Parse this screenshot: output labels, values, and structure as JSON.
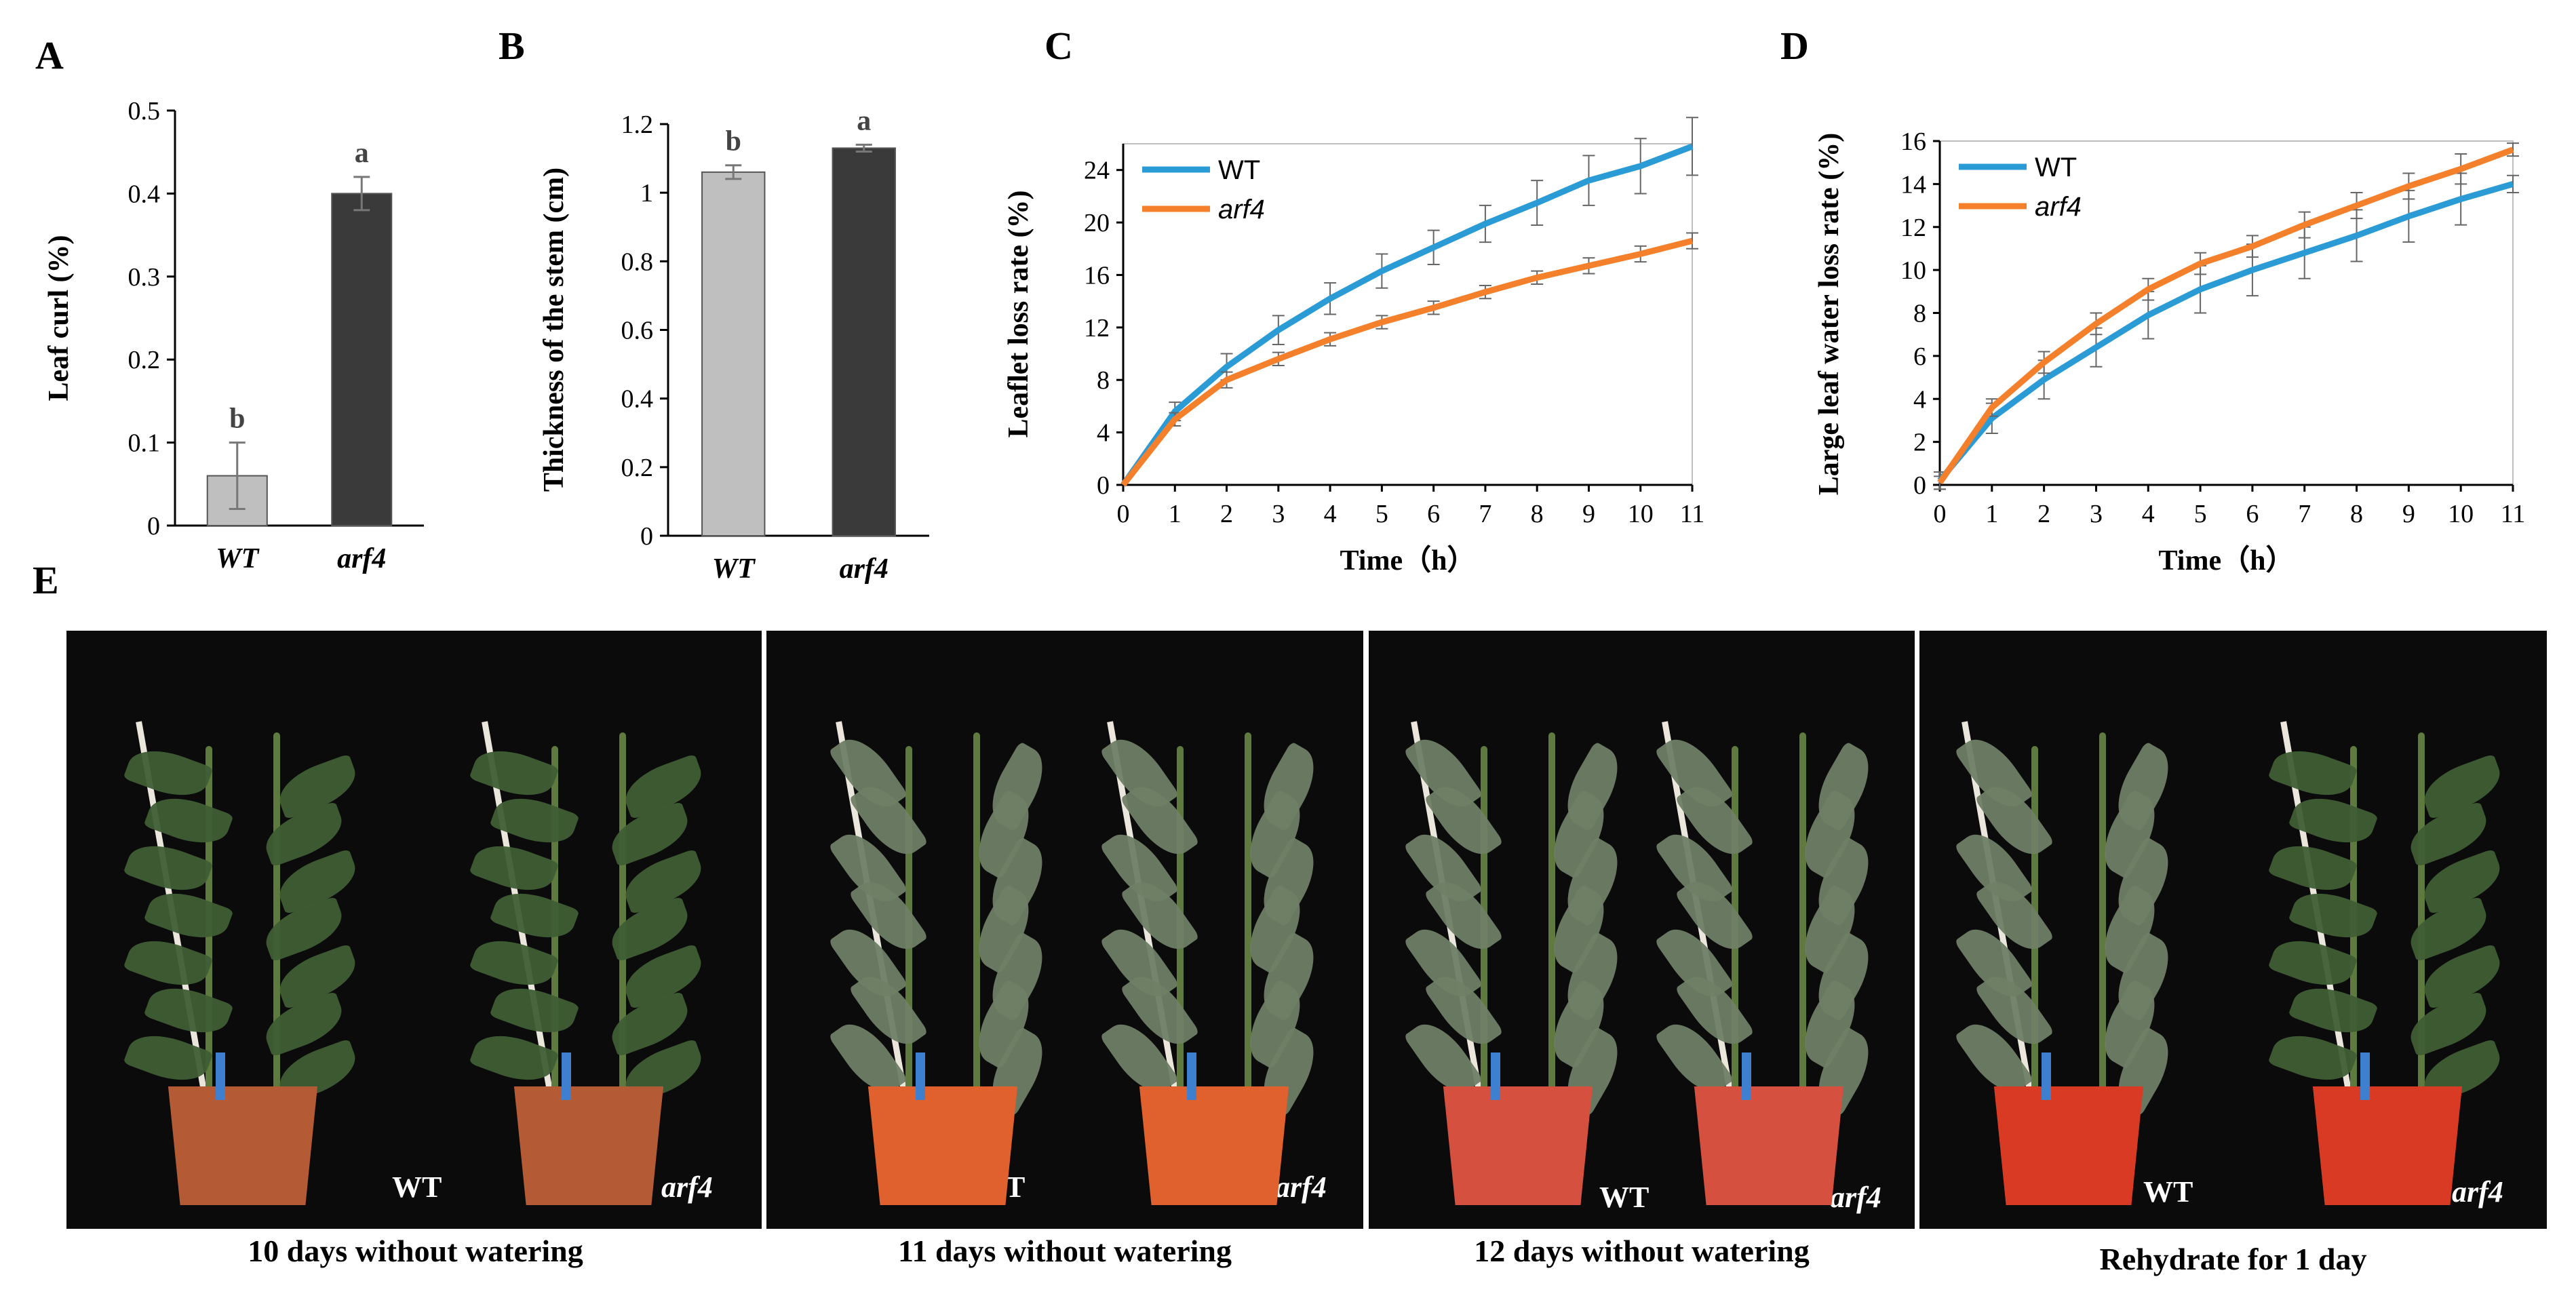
{
  "panels": {
    "A": "A",
    "B": "B",
    "C": "C",
    "D": "D",
    "E": "E"
  },
  "colors": {
    "wt_bar": "#bfbfbf",
    "arf4_bar": "#3a3a3a",
    "wt_line": "#2b9bd6",
    "arf4_line": "#f5802c"
  },
  "chart_data": [
    {
      "id": "A",
      "type": "bar",
      "ylabel": "Leaf curl (%)",
      "categories": [
        "WT",
        "arf4"
      ],
      "values": [
        0.06,
        0.4
      ],
      "errors": [
        0.04,
        0.02
      ],
      "sig": [
        "b",
        "a"
      ],
      "ylim": [
        0,
        0.5
      ],
      "yticks": [
        "0",
        "0.1",
        "0.2",
        "0.3",
        "0.4",
        "0.5"
      ]
    },
    {
      "id": "B",
      "type": "bar",
      "ylabel": "Thickness of the stem (cm)",
      "categories": [
        "WT",
        "arf4"
      ],
      "values": [
        1.06,
        1.13
      ],
      "errors": [
        0.02,
        0.01
      ],
      "sig": [
        "b",
        "a"
      ],
      "ylim": [
        0,
        1.2
      ],
      "yticks": [
        "0",
        "0.2",
        "0.4",
        "0.6",
        "0.8",
        "1",
        "1.2"
      ]
    },
    {
      "id": "C",
      "type": "line",
      "xlabel": "Time（h）",
      "ylabel": "Leaflet loss rate (%)",
      "x": [
        0,
        1,
        2,
        3,
        4,
        5,
        6,
        7,
        8,
        9,
        10,
        11
      ],
      "xticks": [
        "0",
        "1",
        "2",
        "3",
        "4",
        "5",
        "6",
        "7",
        "8",
        "9",
        "10",
        "11"
      ],
      "ylim": [
        0,
        26
      ],
      "yticks": [
        "0",
        "4",
        "8",
        "12",
        "16",
        "20",
        "24"
      ],
      "series": [
        {
          "name": "WT",
          "values": [
            0,
            5.6,
            9.0,
            11.8,
            14.2,
            16.3,
            18.1,
            19.9,
            21.5,
            23.2,
            24.3,
            25.8
          ],
          "errors": [
            0,
            0.7,
            1.0,
            1.1,
            1.2,
            1.3,
            1.3,
            1.4,
            1.7,
            1.9,
            2.1,
            2.2
          ]
        },
        {
          "name": "arf4",
          "values": [
            0,
            5.0,
            8.0,
            9.6,
            11.1,
            12.4,
            13.5,
            14.7,
            15.8,
            16.7,
            17.6,
            18.6
          ],
          "errors": [
            0,
            0.5,
            0.6,
            0.5,
            0.5,
            0.5,
            0.5,
            0.5,
            0.5,
            0.6,
            0.6,
            0.6
          ]
        }
      ]
    },
    {
      "id": "D",
      "type": "line",
      "xlabel": "Time（h）",
      "ylabel": "Large leaf water loss rate (%)",
      "x": [
        0,
        1,
        2,
        3,
        4,
        5,
        6,
        7,
        8,
        9,
        10,
        11
      ],
      "xticks": [
        "0",
        "1",
        "2",
        "3",
        "4",
        "5",
        "6",
        "7",
        "8",
        "9",
        "10",
        "11"
      ],
      "ylim": [
        0,
        16
      ],
      "yticks": [
        "0",
        "2",
        "4",
        "6",
        "8",
        "10",
        "12",
        "14",
        "16"
      ],
      "series": [
        {
          "name": "WT",
          "values": [
            0.2,
            3.1,
            4.9,
            6.4,
            7.9,
            9.1,
            10.0,
            10.8,
            11.6,
            12.5,
            13.3,
            14.0
          ],
          "errors": [
            0.4,
            0.7,
            0.9,
            0.9,
            1.1,
            1.1,
            1.2,
            1.2,
            1.2,
            1.2,
            1.2,
            0.4
          ]
        },
        {
          "name": "arf4",
          "values": [
            0.1,
            3.6,
            5.7,
            7.5,
            9.1,
            10.3,
            11.1,
            12.1,
            13.0,
            13.9,
            14.7,
            15.6
          ],
          "errors": [
            0.3,
            0.4,
            0.5,
            0.5,
            0.5,
            0.5,
            0.5,
            0.6,
            0.6,
            0.6,
            0.7,
            0.3
          ]
        }
      ]
    }
  ],
  "photos": {
    "captions": [
      "10 days without watering",
      "11 days without watering",
      "12 days without watering",
      "Rehydrate for 1 day"
    ],
    "wt_label": "WT",
    "arf4_label": "arf4"
  }
}
